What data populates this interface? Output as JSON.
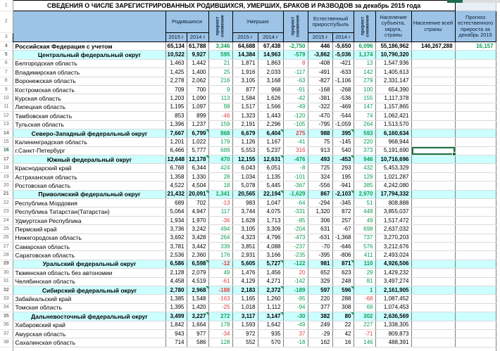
{
  "title": "СВЕДЕНИЯ О ЧИСЛЕ ЗАРЕГИСТРИРОВАННЫХ  РОДИВШИХСЯ, УМЕРШИХ, БРАКОВ И РАЗВОДОВ за декабрь 2015 года",
  "header_row_numbers": [
    "1",
    "2",
    "3"
  ],
  "header": {
    "births_label": "Родившихся",
    "deaths_label": "Умерших",
    "natural_label": "Естественный прирост/убыль",
    "delta1": "прирост",
    "delta2": "снижение",
    "y2015": "2015 г",
    "y2014": "2014 г",
    "pop_subject": "Население субъекта, округа, страны",
    "pop_country": "Население всей страны",
    "forecast": "Прогноз естественного прироста за декабрь 2015"
  },
  "colors": {
    "positive_value": "#0a9f54",
    "negative_value": "#e04040",
    "header_bg": "#9dc3e6",
    "district_row_bg": "#ccffff",
    "selection_border": "#217346",
    "flag_marker": "#1f9d4a"
  },
  "selection": {
    "row": 16,
    "col": "popc"
  },
  "rows": [
    {
      "n": 4,
      "t": "country",
      "name": "Российская Федерация с учетом",
      "b15": "65,134",
      "b14": "61,788",
      "bd": "3,346",
      "d15": "64,688",
      "d14": "67,438",
      "dd": "-2,750",
      "n15": "446",
      "n14": "-5,650",
      "nd": "6,096",
      "pop": "55,186,962",
      "popc": "146,267,288",
      "fc": "16,157"
    },
    {
      "n": 5,
      "t": "district",
      "name": "Центральный федеральный округ",
      "b15": "10,522",
      "b14": "9,927",
      "bd": "595",
      "d15": "14,384",
      "d14": "14,963",
      "dd": "-579",
      "n15": "-3,862",
      "n14": "-5,036",
      "nd": "1,174",
      "pop": "10,790,320"
    },
    {
      "n": 6,
      "t": "region",
      "name": "Белгородская область",
      "b15": "1,463",
      "b14": "1,442",
      "bd": "21",
      "d15": "1,871",
      "d14": "1,863",
      "dd": "8",
      "n15": "-408",
      "n14": "-421",
      "nd": "13",
      "pop": "1,547,936"
    },
    {
      "n": 7,
      "t": "region",
      "name": "Владимирская область",
      "b15": "1,425",
      "b14": "1,400",
      "bd": "25",
      "d15": "1,916",
      "d14": "2,033",
      "dd": "-117",
      "n15": "-491",
      "n14": "-633",
      "nd": "142",
      "pop": "1,405,613"
    },
    {
      "n": 8,
      "t": "region",
      "name": "Воронежская область",
      "b15": "2,278",
      "b14": "2,062",
      "bd": "216",
      "d15": "3,105",
      "d14": "3,168",
      "dd": "-63",
      "n15": "-827",
      "n14": "-1,106",
      "nd": "279",
      "pop": "2,331,147"
    },
    {
      "n": 9,
      "t": "region",
      "name": "Костромская область",
      "b15": "709",
      "b14": "700",
      "bd": "9",
      "d15": "877",
      "d14": "968",
      "dd": "-91",
      "n15": "-168",
      "n14": "-268",
      "nd": "100",
      "pop": "654,390"
    },
    {
      "n": 10,
      "t": "region",
      "name": "Курская область",
      "b15": "1,203",
      "b14": "1,090",
      "bd": "113",
      "d15": "1,584",
      "d14": "1,626",
      "dd": "-42",
      "n15": "-381",
      "n14": "-536",
      "nd": "155",
      "pop": "1,117,378"
    },
    {
      "n": 11,
      "t": "region",
      "name": "Липецкая область",
      "b15": "1,195",
      "b14": "1,097",
      "bd": "98",
      "d15": "1,517",
      "d14": "1,566",
      "dd": "-49",
      "n15": "-322",
      "n14": "-469",
      "nd": "147",
      "pop": "1,157,865"
    },
    {
      "n": 12,
      "t": "region",
      "name": "Тамбовская область",
      "b15": "853",
      "b14": "899",
      "bd": "-46",
      "d15": "1,323",
      "d14": "1,443",
      "dd": "-120",
      "n15": "-470",
      "n14": "-544",
      "nd": "74",
      "pop": "1,062,421"
    },
    {
      "n": 13,
      "t": "region",
      "name": "Тульская область",
      "b15": "1,396",
      "b14": "1,237",
      "bd": "159",
      "d15": "2,191",
      "d14": "2,296",
      "dd": "-105",
      "n15": "-795",
      "n14": "-1,059",
      "nd": "264",
      "pop": "1,513,570"
    },
    {
      "n": 14,
      "t": "district",
      "flags": true,
      "name": "Северо-Западный федеральный округ",
      "b15": "7,667",
      "b14": "6,799",
      "bd": "868",
      "d15": "6,679",
      "d14": "6,404",
      "dd": "275",
      "n15": "988",
      "n14": "395",
      "nd": "593",
      "pop": "6,160,634"
    },
    {
      "n": 15,
      "t": "region",
      "name": "Калининградская область",
      "b15": "1,201",
      "b14": "1,022",
      "bd": "179",
      "d15": "1,126",
      "d14": "1,167",
      "dd": "-41",
      "n15": "75",
      "n14": "-145",
      "nd": "220",
      "pop": "968,944"
    },
    {
      "n": 16,
      "t": "region",
      "name": "г.Санкт-Петербург",
      "b15": "6,466",
      "b14": "5,777",
      "bd": "689",
      "d15": "5,553",
      "d14": "5,237",
      "dd": "316",
      "n15": "913",
      "n14": "540",
      "nd": "373",
      "pop": "5,191,690"
    },
    {
      "n": 17,
      "t": "district",
      "flags": true,
      "name": "Южный федеральный округ",
      "b15": "12,648",
      "b14": "12,178",
      "bd": "470",
      "d15": "12,155",
      "d14": "12,631",
      "dd": "-476",
      "n15": "493",
      "n14": "-453",
      "nd": "946",
      "pop": "10,716,696"
    },
    {
      "n": 18,
      "t": "region",
      "name": "Краснодарский край",
      "b15": "6,768",
      "b14": "6,344",
      "bd": "424",
      "d15": "6,043",
      "d14": "6,051",
      "dd": "-8",
      "n15": "725",
      "n14": "293",
      "nd": "432",
      "pop": "5,453,329"
    },
    {
      "n": 19,
      "t": "region",
      "name": "Астраханская область",
      "b15": "1,358",
      "b14": "1,330",
      "bd": "28",
      "d15": "1,034",
      "d14": "1,135",
      "dd": "-101",
      "n15": "324",
      "n14": "195",
      "nd": "129",
      "pop": "1,021,287"
    },
    {
      "n": 20,
      "t": "region",
      "name": "Ростовская область",
      "b15": "4,522",
      "b14": "4,504",
      "bd": "18",
      "d15": "5,078",
      "d14": "5,445",
      "dd": "-367",
      "n15": "-556",
      "n14": "-941",
      "nd": "385",
      "pop": "4,242,080"
    },
    {
      "n": 21,
      "t": "district",
      "flags": true,
      "name": "Приволжский федеральный округ",
      "b15": "21,432",
      "b14": "20,091",
      "bd": "1,341",
      "d15": "20,565",
      "d14": "22,194",
      "dd": "-1,629",
      "n15": "867",
      "n14": "-2,103",
      "nd": "2,970",
      "pop": "17,794,332"
    },
    {
      "n": 22,
      "t": "region",
      "name": "Республика Мордовия",
      "b15": "689",
      "b14": "702",
      "bd": "-13",
      "d15": "983",
      "d14": "1,047",
      "dd": "-64",
      "n15": "-294",
      "n14": "-345",
      "nd": "51",
      "pop": "808,888"
    },
    {
      "n": 23,
      "t": "region",
      "name": "Республика Татарстан(Татарстан)",
      "b15": "5,064",
      "b14": "4,947",
      "bd": "117",
      "d15": "3,744",
      "d14": "4,075",
      "dd": "-331",
      "n15": "1,320",
      "n14": "872",
      "nd": "448",
      "pop": "3,855,037"
    },
    {
      "n": 24,
      "t": "region",
      "name": "Удмуртская Республика",
      "b15": "1,934",
      "b14": "1,970",
      "bd": "-36",
      "d15": "1,628",
      "d14": "1,713",
      "dd": "-85",
      "n15": "306",
      "n14": "257",
      "nd": "49",
      "pop": "1,517,472"
    },
    {
      "n": 25,
      "t": "region",
      "name": "Пермский край",
      "b15": "3,736",
      "b14": "3,242",
      "bd": "494",
      "d15": "3,105",
      "d14": "3,309",
      "dd": "-204",
      "n15": "631",
      "n14": "-67",
      "nd": "698",
      "pop": "2,637,032"
    },
    {
      "n": 26,
      "t": "region",
      "name": "Нижегородская область",
      "b15": "3,692",
      "b14": "3,428",
      "bd": "264",
      "d15": "4,323",
      "d14": "4,796",
      "dd": "-473",
      "n15": "-631",
      "n14": "-1,368",
      "nd": "737",
      "pop": "3,270,203"
    },
    {
      "n": 27,
      "t": "region",
      "name": "Самарская область",
      "b15": "3,781",
      "b14": "3,442",
      "bd": "339",
      "d15": "3,851",
      "d14": "4,088",
      "dd": "-237",
      "n15": "-70",
      "n14": "-646",
      "nd": "576",
      "pop": "3,212,676"
    },
    {
      "n": 28,
      "t": "region",
      "name": "Саратовская область",
      "b15": "2,536",
      "b14": "2,360",
      "bd": "176",
      "d15": "2,931",
      "d14": "3,166",
      "dd": "-235",
      "n15": "-395",
      "n14": "-806",
      "nd": "411",
      "pop": "2,493,024"
    },
    {
      "n": 29,
      "t": "district",
      "flags": true,
      "name": "Уральский федеральный округ",
      "b15": "6,586",
      "b14": "6,598",
      "bd": "-12",
      "d15": "5,605",
      "d14": "5,727",
      "dd": "-122",
      "n15": "981",
      "n14": "871",
      "nd": "110",
      "pop": "4,926,506"
    },
    {
      "n": 30,
      "t": "region",
      "name": "Тюменская область без автономии",
      "b15": "2,128",
      "b14": "2,079",
      "bd": "49",
      "d15": "1,476",
      "d14": "1,456",
      "dd": "20",
      "n15": "652",
      "n14": "623",
      "nd": "29",
      "pop": "1,429,232"
    },
    {
      "n": 31,
      "t": "region",
      "name": "Челябинская область",
      "b15": "4,458",
      "b14": "4,519",
      "bd": "-61",
      "d15": "4,129",
      "d14": "4,271",
      "dd": "-142",
      "n15": "329",
      "n14": "248",
      "nd": "81",
      "pop": "3,497,274"
    },
    {
      "n": 32,
      "t": "district",
      "flags": true,
      "name": "Сибирский федеральный округ",
      "b15": "2,780",
      "b14": "2,968",
      "bd": "-188",
      "d15": "2,183",
      "d14": "2,372",
      "dd": "-189",
      "n15": "597",
      "n14": "596",
      "nd": "1",
      "pop": "2,161,905"
    },
    {
      "n": 33,
      "t": "region",
      "name": "Забайкальский край",
      "b15": "1,385",
      "b14": "1,548",
      "bd": "-163",
      "d15": "1,165",
      "d14": "1,260",
      "dd": "-95",
      "n15": "220",
      "n14": "288",
      "nd": "-68",
      "pop": "1,087,452"
    },
    {
      "n": 34,
      "t": "region",
      "name": "Томская область",
      "b15": "1,395",
      "b14": "1,420",
      "bd": "-25",
      "d15": "1,018",
      "d14": "1,112",
      "dd": "-94",
      "n15": "377",
      "n14": "308",
      "nd": "69",
      "pop": "1,074,453"
    },
    {
      "n": 35,
      "t": "district",
      "flags": true,
      "name": "Дальневосточный федеральный округ",
      "b15": "3,499",
      "b14": "3,227",
      "bd": "272",
      "d15": "3,117",
      "d14": "3,147",
      "dd": "-30",
      "n15": "382",
      "n14": "80",
      "nd": "302",
      "pop": "2,636,569"
    },
    {
      "n": 36,
      "t": "region",
      "name": "Хабаровский край",
      "b15": "1,842",
      "b14": "1,664",
      "bd": "178",
      "d15": "1,593",
      "d14": "1,642",
      "dd": "-49",
      "n15": "249",
      "n14": "22",
      "nd": "227",
      "pop": "1,338,305"
    },
    {
      "n": 37,
      "t": "region",
      "name": "Амурская область",
      "b15": "943",
      "b14": "977",
      "bd": "-34",
      "d15": "972",
      "d14": "935",
      "dd": "37",
      "n15": "-29",
      "n14": "42",
      "nd": "-71",
      "pop": "809,873"
    },
    {
      "n": 38,
      "t": "region",
      "name": "Сахалинская область",
      "b15": "714",
      "b14": "586",
      "bd": "128",
      "d15": "552",
      "d14": "570",
      "dd": "-18",
      "n15": "162",
      "n14": "16",
      "nd": "146",
      "pop": "488,391"
    }
  ]
}
